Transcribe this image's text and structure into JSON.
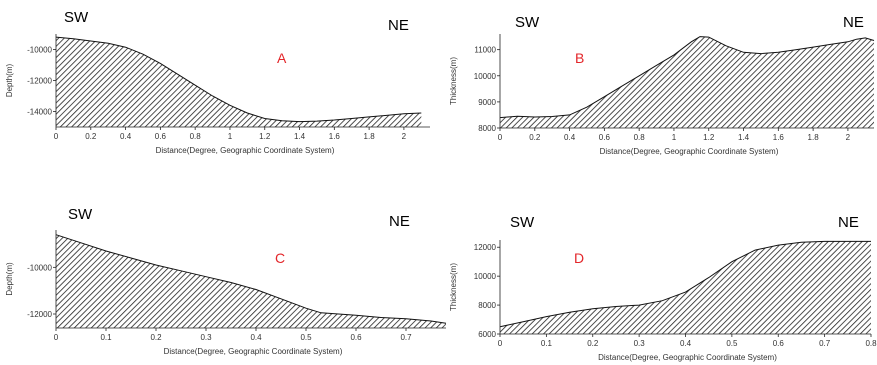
{
  "chart_data": [
    {
      "type": "area",
      "letter": "A",
      "left_label": "SW",
      "right_label": "NE",
      "xlabel": "Distance(Degree, Geographic Coordinate System)",
      "ylabel": "Depth(m)",
      "xlim": [
        0,
        2.15
      ],
      "ylim": [
        -15000,
        -9000
      ],
      "fill_to": -15000,
      "x_ticks": [
        0,
        0.2,
        0.4,
        0.6,
        0.8,
        1,
        1.2,
        1.4,
        1.6,
        1.8,
        2
      ],
      "x_tick_labels": [
        "0",
        "0.2",
        "0.4",
        "0.6",
        "0.8",
        "1",
        "1.2",
        "1.4",
        "1.6",
        "1.8",
        "2"
      ],
      "y_ticks": [
        -14000,
        -12000,
        -10000
      ],
      "y_tick_labels": [
        "-14000",
        "-12000",
        "-10000"
      ],
      "x": [
        0,
        0.1,
        0.2,
        0.3,
        0.4,
        0.5,
        0.6,
        0.7,
        0.8,
        0.9,
        1.0,
        1.1,
        1.2,
        1.3,
        1.4,
        1.5,
        1.6,
        1.7,
        1.8,
        1.9,
        2.0,
        2.1
      ],
      "y": [
        -9200,
        -9300,
        -9450,
        -9600,
        -9850,
        -10300,
        -10900,
        -11600,
        -12300,
        -13000,
        -13600,
        -14100,
        -14450,
        -14600,
        -14650,
        -14620,
        -14550,
        -14450,
        -14350,
        -14250,
        -14150,
        -14100
      ]
    },
    {
      "type": "area",
      "letter": "B",
      "left_label": "SW",
      "right_label": "NE",
      "xlabel": "Distance(Degree, Geographic Coordinate System)",
      "ylabel": "Thickness(m)",
      "xlim": [
        0,
        2.15
      ],
      "ylim": [
        8000,
        11600
      ],
      "fill_to": 8000,
      "x_ticks": [
        0,
        0.2,
        0.4,
        0.6,
        0.8,
        1,
        1.2,
        1.4,
        1.6,
        1.8,
        2
      ],
      "x_tick_labels": [
        "0",
        "0.2",
        "0.4",
        "0.6",
        "0.8",
        "1",
        "1.2",
        "1.4",
        "1.6",
        "1.8",
        "2"
      ],
      "y_ticks": [
        8000,
        9000,
        10000,
        11000
      ],
      "y_tick_labels": [
        "8000",
        "9000",
        "10000",
        "11000"
      ],
      "x": [
        0,
        0.1,
        0.2,
        0.3,
        0.4,
        0.5,
        0.6,
        0.7,
        0.8,
        0.9,
        1.0,
        1.1,
        1.15,
        1.2,
        1.3,
        1.4,
        1.5,
        1.6,
        1.7,
        1.8,
        1.9,
        2.0,
        2.05,
        2.1,
        2.15
      ],
      "y": [
        8400,
        8450,
        8420,
        8440,
        8500,
        8800,
        9200,
        9600,
        10000,
        10400,
        10800,
        11300,
        11500,
        11480,
        11150,
        10900,
        10850,
        10900,
        11000,
        11100,
        11200,
        11300,
        11400,
        11450,
        11350
      ]
    },
    {
      "type": "area",
      "letter": "C",
      "left_label": "SW",
      "right_label": "NE",
      "xlabel": "Distance(Degree, Geographic Coordinate System)",
      "ylabel": "Depth(m)",
      "xlim": [
        0,
        0.78
      ],
      "ylim": [
        -12600,
        -8400
      ],
      "fill_to": -12600,
      "x_ticks": [
        0,
        0.1,
        0.2,
        0.3,
        0.4,
        0.5,
        0.6,
        0.7
      ],
      "x_tick_labels": [
        "0",
        "0.1",
        "0.2",
        "0.3",
        "0.4",
        "0.5",
        "0.6",
        "0.7"
      ],
      "y_ticks": [
        -12000,
        -10000
      ],
      "y_tick_labels": [
        "-12000",
        "-10000"
      ],
      "x": [
        0,
        0.05,
        0.1,
        0.15,
        0.2,
        0.25,
        0.3,
        0.35,
        0.4,
        0.45,
        0.5,
        0.53,
        0.6,
        0.65,
        0.7,
        0.75,
        0.78
      ],
      "y": [
        -8600,
        -8950,
        -9300,
        -9600,
        -9900,
        -10150,
        -10400,
        -10650,
        -10950,
        -11350,
        -11750,
        -11950,
        -12050,
        -12150,
        -12200,
        -12300,
        -12400
      ]
    },
    {
      "type": "area",
      "letter": "D",
      "left_label": "SW",
      "right_label": "NE",
      "xlabel": "Distance(Degree, Geographic Coordinate System)",
      "ylabel": "Thickness(m)",
      "xlim": [
        0,
        0.8
      ],
      "ylim": [
        6000,
        12500
      ],
      "fill_to": 6000,
      "x_ticks": [
        0,
        0.1,
        0.2,
        0.3,
        0.4,
        0.5,
        0.6,
        0.7,
        0.8
      ],
      "x_tick_labels": [
        "0",
        "0.1",
        "0.2",
        "0.3",
        "0.4",
        "0.5",
        "0.6",
        "0.7",
        "0.8"
      ],
      "y_ticks": [
        6000,
        8000,
        10000,
        12000
      ],
      "y_tick_labels": [
        "6000",
        "8000",
        "10000",
        "12000"
      ],
      "x": [
        0,
        0.05,
        0.1,
        0.15,
        0.2,
        0.25,
        0.3,
        0.35,
        0.4,
        0.45,
        0.5,
        0.55,
        0.6,
        0.65,
        0.7,
        0.75,
        0.8
      ],
      "y": [
        6500,
        6850,
        7200,
        7500,
        7750,
        7900,
        8000,
        8300,
        8900,
        9900,
        11000,
        11800,
        12150,
        12350,
        12400,
        12400,
        12400
      ]
    }
  ]
}
